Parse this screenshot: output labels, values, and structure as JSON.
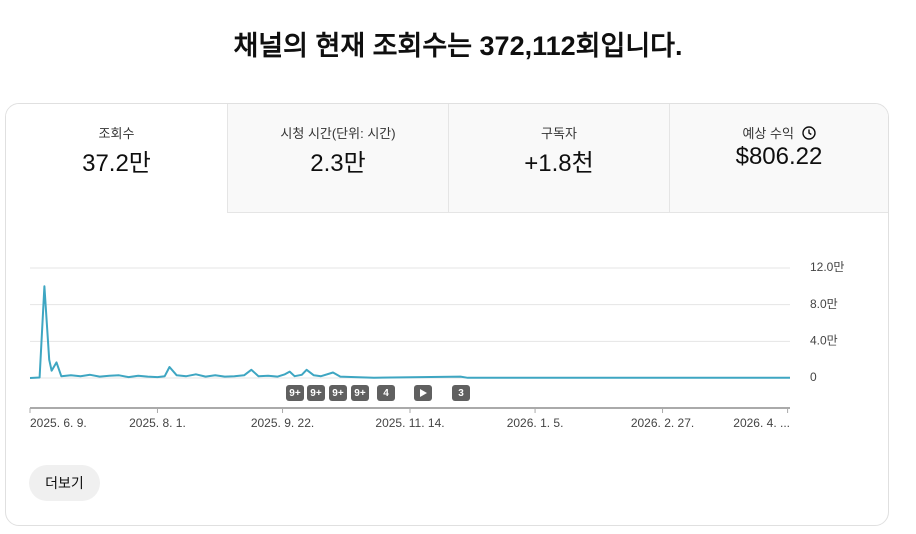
{
  "header": {
    "title": "채널의 현재 조회수는 372,112회입니다."
  },
  "tabs": [
    {
      "label": "조회수",
      "value": "37.2만"
    },
    {
      "label": "시청 시간(단위: 시간)",
      "value": "2.3만"
    },
    {
      "label": "구독자",
      "value": "+1.8천"
    },
    {
      "label": "예상 수익",
      "value": "$806.22"
    }
  ],
  "chart_data": {
    "type": "line",
    "color": "#3ea6c2",
    "grid": true,
    "x": [
      "2025-06-09",
      "2025-06-13",
      "2025-06-15",
      "2025-06-17",
      "2025-06-18",
      "2025-06-20",
      "2025-06-22",
      "2025-06-26",
      "2025-06-30",
      "2025-07-04",
      "2025-07-08",
      "2025-07-12",
      "2025-07-16",
      "2025-07-20",
      "2025-07-24",
      "2025-07-28",
      "2025-08-01",
      "2025-08-04",
      "2025-08-06",
      "2025-08-09",
      "2025-08-13",
      "2025-08-17",
      "2025-08-21",
      "2025-08-25",
      "2025-08-29",
      "2025-09-02",
      "2025-09-06",
      "2025-09-09",
      "2025-09-12",
      "2025-09-16",
      "2025-09-20",
      "2025-09-23",
      "2025-09-25",
      "2025-09-27",
      "2025-09-30",
      "2025-10-02",
      "2025-10-05",
      "2025-10-08",
      "2025-10-13",
      "2025-10-16",
      "2025-10-22",
      "2025-10-30",
      "2025-12-05",
      "2025-12-08",
      "2026-04-21"
    ],
    "values": [
      0,
      500,
      100000,
      20000,
      8000,
      17000,
      2000,
      3000,
      2000,
      3500,
      1500,
      2500,
      3000,
      1000,
      2500,
      1500,
      1000,
      2000,
      12000,
      3000,
      2000,
      4000,
      1500,
      3000,
      1500,
      2000,
      3000,
      9000,
      2000,
      2500,
      1500,
      4000,
      7000,
      2000,
      3500,
      9000,
      3000,
      2000,
      6000,
      1500,
      1000,
      300,
      1500,
      200,
      200
    ],
    "xlim": [
      "2025-06-09",
      "2026-04-21"
    ],
    "xticks": [
      {
        "value": "2025-06-09",
        "label": "2025. 6. 9."
      },
      {
        "value": "2025-08-01",
        "label": "2025. 8. 1."
      },
      {
        "value": "2025-09-22",
        "label": "2025. 9. 22."
      },
      {
        "value": "2025-11-14",
        "label": "2025. 11. 14."
      },
      {
        "value": "2026-01-05",
        "label": "2026. 1. 5."
      },
      {
        "value": "2026-02-27",
        "label": "2026. 2. 27."
      },
      {
        "value": "2026-04-20",
        "label": "2026. 4. ..."
      }
    ],
    "ylim": [
      0,
      120000
    ],
    "yticks": [
      0,
      {
        "value": 40000,
        "label": "4.0만"
      },
      {
        "value": 80000,
        "label": "8.0만"
      },
      {
        "value": 120000,
        "label": "12.0만"
      }
    ],
    "annotations": [
      "9+",
      "9+",
      "9+",
      "9+",
      "4",
      "3"
    ]
  },
  "more_button": "더보기"
}
